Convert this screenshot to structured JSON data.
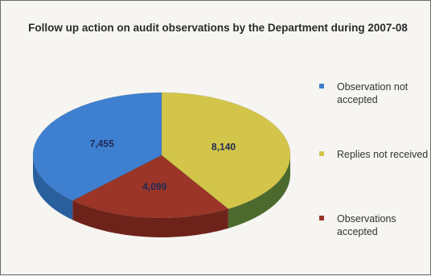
{
  "chart_data": {
    "type": "pie",
    "title": "Follow up action on audit observations by the Department during 2007-08",
    "slices": [
      {
        "name": "Observation not accepted",
        "value": 7455,
        "label": "7,455",
        "color": "#3e7fd0"
      },
      {
        "name": "Replies not received",
        "value": 8140,
        "label": "8,140",
        "color": "#d3c549"
      },
      {
        "name": "Observations accepted",
        "value": 4099,
        "label": "4,099",
        "color": "#9a3528"
      }
    ],
    "legend_position": "right",
    "three_d": true
  },
  "colors": {
    "blue_side": "#2a5f9e",
    "yellow_side": "#4c6a2e",
    "red_side": "#6e231a"
  }
}
